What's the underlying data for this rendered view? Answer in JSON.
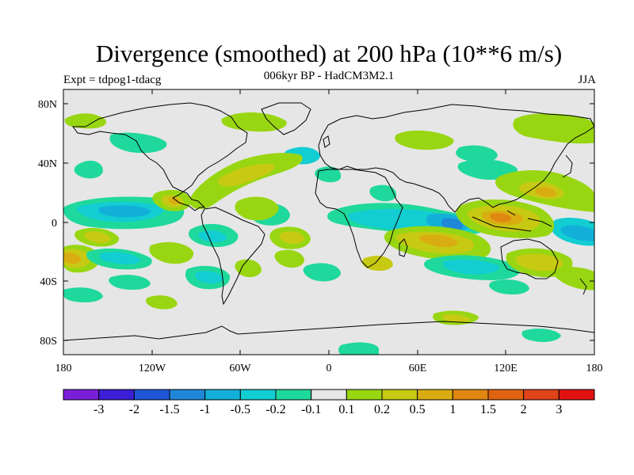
{
  "header": {
    "title": "Divergence (smoothed) at 200 hPa (10**6 m/s)",
    "subtitle": "006kyr BP - HadCM3M2.1",
    "experiment": "Expt = tdpog1-tdacg",
    "season": "JJA"
  },
  "axes": {
    "lon_ticks": [
      "180",
      "120W",
      "60W",
      "0",
      "60E",
      "120E",
      "180"
    ],
    "lat_ticks": [
      "80N",
      "40N",
      "0",
      "40S",
      "80S"
    ]
  },
  "colorbar": {
    "labels": [
      "-3",
      "-2",
      "-1.5",
      "-1",
      "-0.5",
      "-0.2",
      "-0.1",
      "0.1",
      "0.2",
      "0.5",
      "1",
      "1.5",
      "2",
      "3"
    ],
    "colors": [
      "#7a1fd8",
      "#3c1ed6",
      "#1f56d8",
      "#1f87d8",
      "#12b0d8",
      "#12cdd2",
      "#1fd89c",
      "#e6e6e6",
      "#99d612",
      "#c7c912",
      "#d9ad12",
      "#e08712",
      "#e06312",
      "#e0421a",
      "#e01212"
    ]
  },
  "field_colors": {
    "background": "#e6e6e6",
    "pos1": "#99d612",
    "pos2": "#c7c912",
    "pos3": "#d9ad12",
    "pos4": "#e08712",
    "neg1": "#1fd89c",
    "neg2": "#12cdd2",
    "neg3": "#12b0d8",
    "neg4": "#1f87d8"
  }
}
